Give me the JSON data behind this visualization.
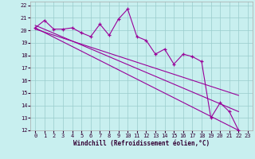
{
  "title": "",
  "xlabel": "Windchill (Refroidissement éolien,°C)",
  "ylabel": "",
  "bg_color": "#c8efef",
  "line_color": "#990099",
  "grid_color": "#99cccc",
  "xlim": [
    -0.5,
    23.5
  ],
  "ylim": [
    12,
    22.3
  ],
  "xticks": [
    0,
    1,
    2,
    3,
    4,
    5,
    6,
    7,
    8,
    9,
    10,
    11,
    12,
    13,
    14,
    15,
    16,
    17,
    18,
    19,
    20,
    21,
    22,
    23
  ],
  "yticks": [
    12,
    13,
    14,
    15,
    16,
    17,
    18,
    19,
    20,
    21,
    22
  ],
  "data_x": [
    0,
    1,
    2,
    3,
    4,
    5,
    6,
    7,
    8,
    9,
    10,
    11,
    12,
    13,
    14,
    15,
    16,
    17,
    18,
    19,
    20,
    21,
    22
  ],
  "data_y": [
    20.2,
    20.8,
    20.1,
    20.1,
    20.2,
    19.8,
    19.5,
    20.5,
    19.6,
    20.9,
    21.7,
    19.5,
    19.2,
    18.1,
    18.5,
    17.3,
    18.1,
    17.9,
    17.5,
    13.0,
    14.2,
    13.5,
    12.0
  ],
  "line1_x": [
    0,
    22
  ],
  "line1_y": [
    20.2,
    12.0
  ],
  "line2_x": [
    0,
    22
  ],
  "line2_y": [
    20.4,
    13.5
  ],
  "line3_x": [
    0,
    22
  ],
  "line3_y": [
    20.1,
    14.8
  ],
  "xlabel_fontsize": 5.5,
  "tick_fontsize": 5.0,
  "linewidth": 0.8,
  "markersize": 3.5
}
